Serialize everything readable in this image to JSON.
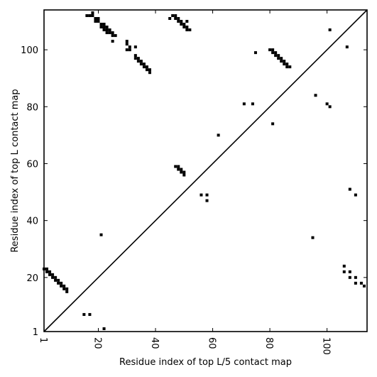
{
  "chart_data": {
    "type": "scatter",
    "title": "",
    "xlabel": "Residue index of top L/5 contact map",
    "ylabel": "Residue index of top L contact map",
    "xlim": [
      1,
      114
    ],
    "ylim": [
      1,
      114
    ],
    "x_ticks": [
      1,
      20,
      40,
      60,
      80,
      100
    ],
    "y_ticks": [
      1,
      20,
      40,
      60,
      80,
      100
    ],
    "x_tick_labels": [
      "1",
      "20",
      "40",
      "60",
      "80",
      "100"
    ],
    "y_tick_labels": [
      "1",
      "20",
      "40",
      "60",
      "80",
      "100"
    ],
    "grid": false,
    "diagonal_line": true,
    "marker_color": "#000000",
    "series": [
      {
        "points": [
          [
            16,
            112
          ],
          [
            17,
            112
          ],
          [
            18,
            112
          ],
          [
            18,
            113
          ],
          [
            19,
            111
          ],
          [
            20,
            111
          ],
          [
            19,
            110
          ],
          [
            20,
            110
          ],
          [
            21,
            109
          ],
          [
            22,
            109
          ],
          [
            21,
            108
          ],
          [
            22,
            108
          ],
          [
            23,
            108
          ],
          [
            22,
            107
          ],
          [
            23,
            107
          ],
          [
            24,
            107
          ],
          [
            23,
            106
          ],
          [
            24,
            106
          ],
          [
            25,
            106
          ],
          [
            25,
            105
          ],
          [
            26,
            105
          ],
          [
            25,
            103
          ],
          [
            30,
            103
          ],
          [
            30,
            102
          ],
          [
            31,
            101
          ],
          [
            30,
            100
          ],
          [
            31,
            100
          ],
          [
            33,
            101
          ],
          [
            33,
            98
          ],
          [
            33,
            97
          ],
          [
            34,
            97
          ],
          [
            34,
            96
          ],
          [
            35,
            96
          ],
          [
            35,
            95
          ],
          [
            36,
            95
          ],
          [
            36,
            94
          ],
          [
            37,
            94
          ],
          [
            37,
            93
          ],
          [
            38,
            93
          ],
          [
            38,
            92
          ],
          [
            45,
            111
          ],
          [
            46,
            112
          ],
          [
            47,
            112
          ],
          [
            47,
            111
          ],
          [
            48,
            111
          ],
          [
            48,
            110
          ],
          [
            49,
            110
          ],
          [
            49,
            109
          ],
          [
            50,
            109
          ],
          [
            50,
            108
          ],
          [
            51,
            108
          ],
          [
            51,
            107
          ],
          [
            52,
            107
          ],
          [
            51,
            110
          ],
          [
            80,
            100
          ],
          [
            81,
            100
          ],
          [
            81,
            99
          ],
          [
            82,
            99
          ],
          [
            82,
            98
          ],
          [
            83,
            98
          ],
          [
            83,
            97
          ],
          [
            84,
            97
          ],
          [
            84,
            96
          ],
          [
            85,
            96
          ],
          [
            85,
            95
          ],
          [
            86,
            95
          ],
          [
            86,
            94
          ],
          [
            87,
            94
          ],
          [
            75,
            99
          ],
          [
            71,
            81
          ],
          [
            74,
            81
          ],
          [
            81,
            74
          ],
          [
            96,
            84
          ],
          [
            100,
            81
          ],
          [
            101,
            80
          ],
          [
            101,
            107
          ],
          [
            107,
            101
          ],
          [
            47,
            59
          ],
          [
            48,
            59
          ],
          [
            48,
            58
          ],
          [
            49,
            58
          ],
          [
            49,
            57
          ],
          [
            50,
            57
          ],
          [
            50,
            56
          ],
          [
            62,
            70
          ],
          [
            56,
            49
          ],
          [
            58,
            49
          ],
          [
            58,
            47
          ],
          [
            21,
            35
          ],
          [
            95,
            34
          ],
          [
            108,
            51
          ],
          [
            110,
            49
          ],
          [
            1,
            23
          ],
          [
            2,
            23
          ],
          [
            2,
            22
          ],
          [
            3,
            22
          ],
          [
            3,
            21
          ],
          [
            4,
            21
          ],
          [
            4,
            20
          ],
          [
            5,
            20
          ],
          [
            5,
            19
          ],
          [
            6,
            19
          ],
          [
            6,
            18
          ],
          [
            7,
            18
          ],
          [
            7,
            17
          ],
          [
            8,
            17
          ],
          [
            8,
            16
          ],
          [
            9,
            16
          ],
          [
            9,
            15
          ],
          [
            15,
            7
          ],
          [
            17,
            7
          ],
          [
            22,
            2
          ],
          [
            106,
            24
          ],
          [
            106,
            22
          ],
          [
            108,
            22
          ],
          [
            108,
            20
          ],
          [
            110,
            20
          ],
          [
            110,
            18
          ],
          [
            112,
            18
          ],
          [
            113,
            17
          ]
        ]
      }
    ]
  }
}
